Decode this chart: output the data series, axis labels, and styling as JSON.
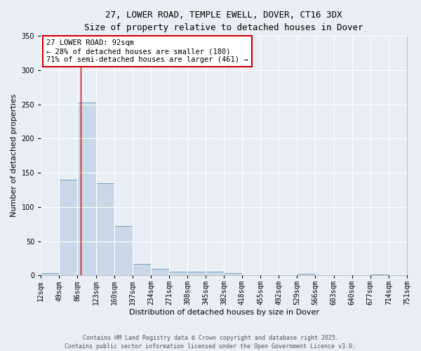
{
  "title_line1": "27, LOWER ROAD, TEMPLE EWELL, DOVER, CT16 3DX",
  "title_line2": "Size of property relative to detached houses in Dover",
  "xlabel": "Distribution of detached houses by size in Dover",
  "ylabel": "Number of detached properties",
  "bar_values": [
    3,
    140,
    253,
    135,
    72,
    17,
    10,
    5,
    5,
    5,
    3,
    0,
    0,
    0,
    2,
    0,
    0,
    0,
    1,
    0
  ],
  "bin_edges": [
    12,
    49,
    86,
    123,
    160,
    197,
    234,
    271,
    308,
    345,
    382,
    418,
    455,
    492,
    529,
    566,
    603,
    640,
    677,
    714,
    751
  ],
  "bar_color": "#c8d8e8",
  "bar_edge_color": "#6699bb",
  "background_color": "#e8eef4",
  "grid_color": "#ffffff",
  "red_line_x": 92,
  "ylim": [
    0,
    350
  ],
  "yticks": [
    0,
    50,
    100,
    150,
    200,
    250,
    300,
    350
  ],
  "annotation_title": "27 LOWER ROAD: 92sqm",
  "annotation_line2": "← 28% of detached houses are smaller (180)",
  "annotation_line3": "71% of semi-detached houses are larger (461) →",
  "annotation_box_color": "#ffffff",
  "annotation_border_color": "#cc0000",
  "footer_line1": "Contains HM Land Registry data © Crown copyright and database right 2025.",
  "footer_line2": "Contains public sector information licensed under the Open Government Licence v3.0.",
  "title_fontsize": 9,
  "axis_label_fontsize": 8,
  "tick_fontsize": 7,
  "annotation_fontsize": 7.5,
  "footer_fontsize": 6
}
